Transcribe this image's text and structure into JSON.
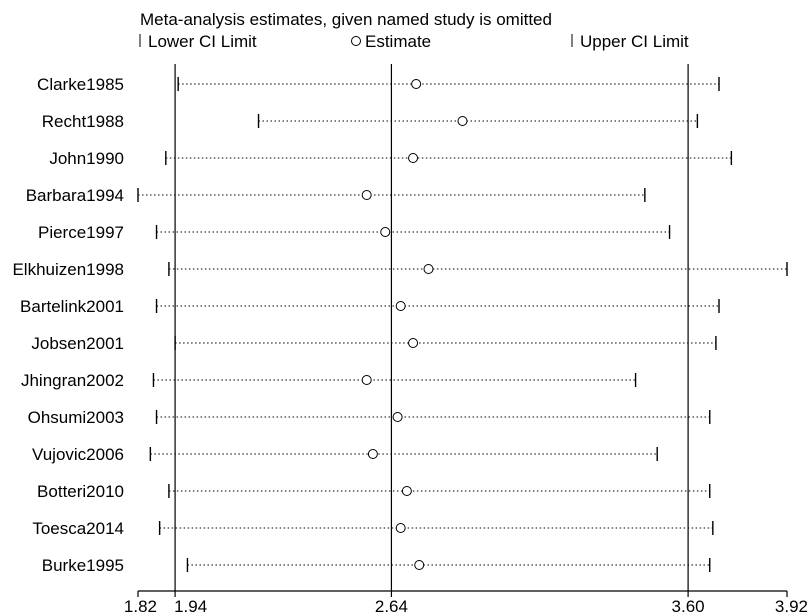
{
  "chart_data": {
    "type": "scatter",
    "title": "Meta-analysis estimates, given named study is omitted",
    "legend": {
      "placement": "top",
      "entries": [
        {
          "symbol": "tick",
          "label": "Lower CI Limit"
        },
        {
          "symbol": "circle",
          "label": "Estimate"
        },
        {
          "symbol": "tick",
          "label": "Upper CI Limit"
        }
      ]
    },
    "xlim": [
      1.82,
      3.92
    ],
    "x_ticks": [
      {
        "value": 1.82,
        "label": "1.82"
      },
      {
        "value": 1.94,
        "label": "1.94"
      },
      {
        "value": 2.64,
        "label": "2.64"
      },
      {
        "value": 3.6,
        "label": "3.60"
      },
      {
        "value": 3.92,
        "label": "3.92"
      }
    ],
    "reference_lines": [
      1.94,
      2.64,
      3.6
    ],
    "studies": [
      {
        "name": "Clarke1985",
        "lower": 1.95,
        "estimate": 2.72,
        "upper": 3.7
      },
      {
        "name": "Recht1988",
        "lower": 2.21,
        "estimate": 2.87,
        "upper": 3.63
      },
      {
        "name": "John1990",
        "lower": 1.91,
        "estimate": 2.71,
        "upper": 3.74
      },
      {
        "name": "Barbara1994",
        "lower": 1.82,
        "estimate": 2.56,
        "upper": 3.46
      },
      {
        "name": "Pierce1997",
        "lower": 1.88,
        "estimate": 2.62,
        "upper": 3.54
      },
      {
        "name": "Elkhuizen1998",
        "lower": 1.92,
        "estimate": 2.76,
        "upper": 3.92
      },
      {
        "name": "Bartelink2001",
        "lower": 1.88,
        "estimate": 2.67,
        "upper": 3.7
      },
      {
        "name": "Jobsen2001",
        "lower": 1.94,
        "estimate": 2.71,
        "upper": 3.69
      },
      {
        "name": "Jhingran2002",
        "lower": 1.87,
        "estimate": 2.56,
        "upper": 3.43
      },
      {
        "name": "Ohsumi2003",
        "lower": 1.88,
        "estimate": 2.66,
        "upper": 3.67
      },
      {
        "name": "Vujovic2006",
        "lower": 1.86,
        "estimate": 2.58,
        "upper": 3.5
      },
      {
        "name": "Botteri2010",
        "lower": 1.92,
        "estimate": 2.69,
        "upper": 3.67
      },
      {
        "name": "Toesca2014",
        "lower": 1.89,
        "estimate": 2.67,
        "upper": 3.68
      },
      {
        "name": "Burke1995",
        "lower": 1.98,
        "estimate": 2.73,
        "upper": 3.67
      }
    ]
  }
}
